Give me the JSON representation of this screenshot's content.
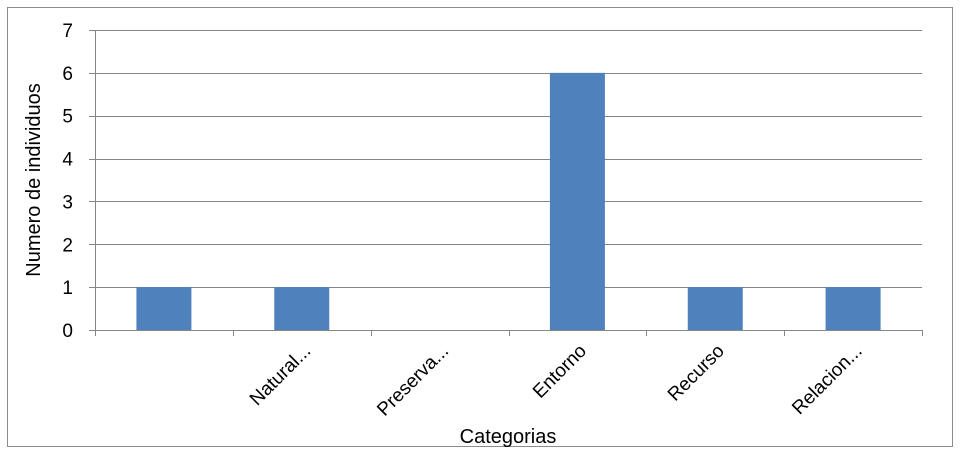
{
  "chart_data": {
    "type": "bar",
    "title": "",
    "xlabel": "Categorias",
    "ylabel": "Numero de individuos",
    "categories": [
      "",
      "Natural...",
      "Preserva...",
      "Entorno",
      "Recurso",
      "Relacion..."
    ],
    "values": [
      1,
      1,
      0,
      6,
      1,
      1
    ],
    "ylim": [
      0,
      7
    ],
    "yticks": [
      0,
      1,
      2,
      3,
      4,
      5,
      6,
      7
    ],
    "grid": true,
    "legend": "none",
    "bar_color": "#4F81BD",
    "gridline_color": "#868686"
  }
}
